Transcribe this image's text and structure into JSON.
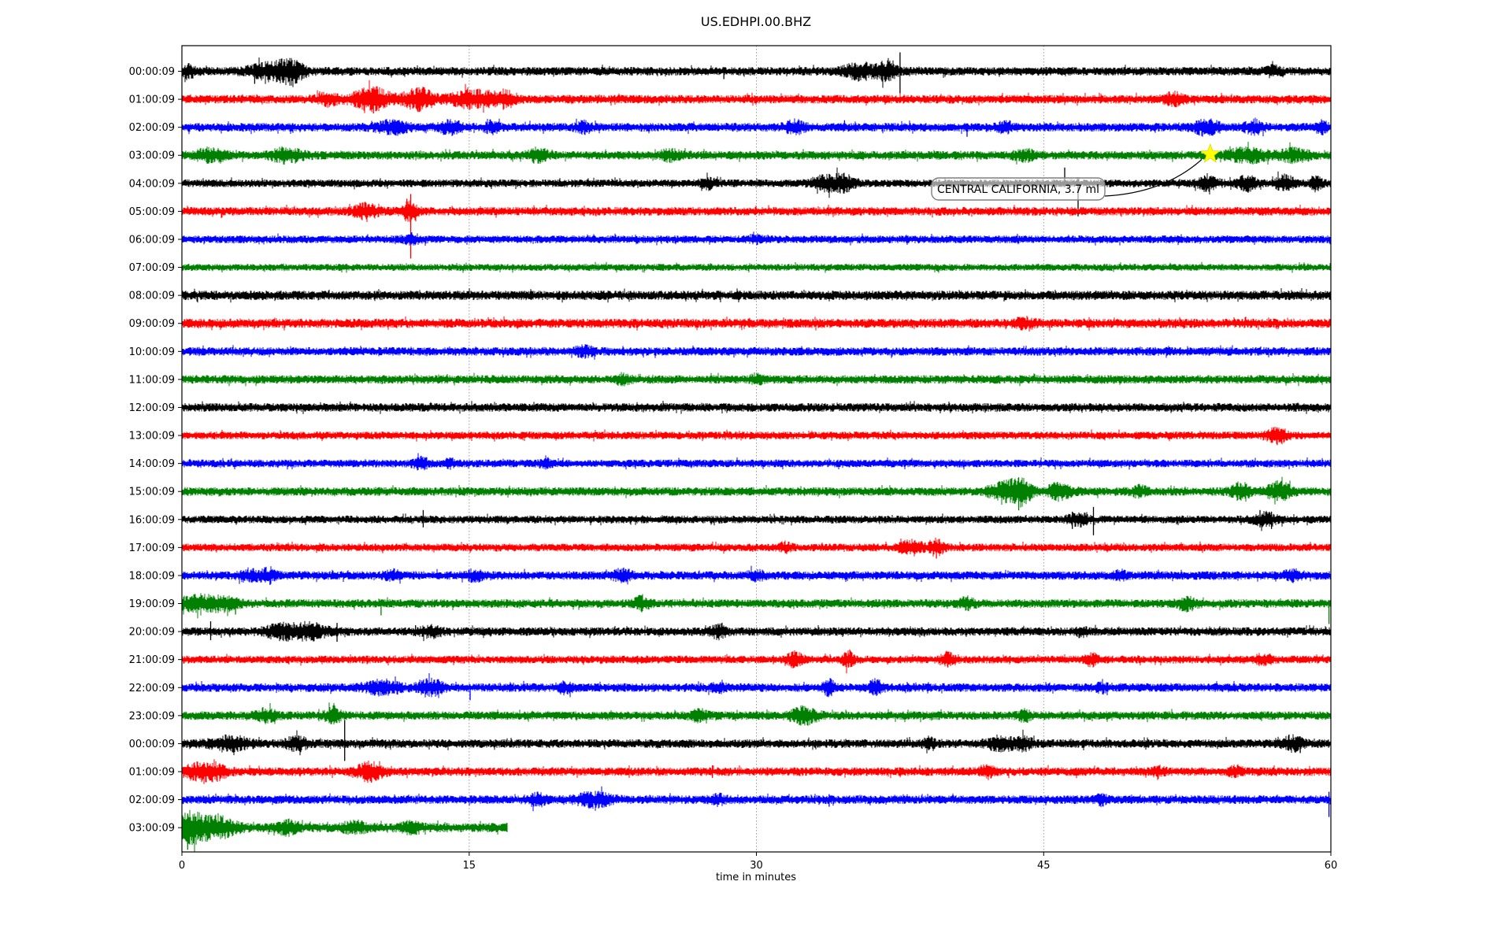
{
  "title": "US.EDHPI.00.BHZ",
  "xlabel": "time in minutes",
  "annotation": {
    "text": "CENTRAL CALIFORNIA, 3.7 ml",
    "row_index": 3,
    "row_label": "03:00:09",
    "minute": 53.7,
    "marker": "star",
    "marker_color": "#ffff00"
  },
  "chart_data": {
    "type": "line",
    "subtype": "seismogram-dayplot",
    "title": "US.EDHPI.00.BHZ",
    "xlabel": "time in minutes",
    "xlim": [
      0,
      60
    ],
    "x_ticks": [
      0,
      15,
      30,
      45,
      60
    ],
    "grid": "vertical-dotted-at-15-30-45",
    "trace_colors_cycle": [
      "#000000",
      "#ff0000",
      "#0000ff",
      "#008000"
    ],
    "events_format": "[minute, extra_amplitude_px, width_min]",
    "spikes_format": "[minute, up_px, down_px]",
    "annotation": {
      "text": "CENTRAL CALIFORNIA, 3.7 ml",
      "row_index": 3,
      "minute": 53.7,
      "marker": "star",
      "marker_color": "#ffff00"
    },
    "rows": [
      {
        "label": "00:00:09",
        "color": "#000000",
        "base": 5.5,
        "end": 60,
        "events": [
          [
            0.3,
            6,
            0.4
          ],
          [
            4.8,
            9,
            1.2
          ],
          [
            5.8,
            8,
            0.6
          ],
          [
            35.4,
            8,
            0.8
          ],
          [
            36.8,
            9,
            0.5
          ],
          [
            57,
            4,
            0.4
          ]
        ],
        "spikes": [
          [
            3.8,
            6,
            16
          ],
          [
            28.3,
            5,
            10
          ],
          [
            37.5,
            24,
            28
          ]
        ]
      },
      {
        "label": "01:00:09",
        "color": "#ff0000",
        "base": 5.5,
        "end": 60,
        "events": [
          [
            7.6,
            6,
            0.5
          ],
          [
            9.9,
            12,
            1.0
          ],
          [
            12.4,
            11,
            0.8
          ],
          [
            15.3,
            9,
            1.2
          ],
          [
            16.9,
            7,
            0.5
          ],
          [
            51.8,
            6,
            0.5
          ]
        ],
        "spikes": [
          [
            10.0,
            14,
            18
          ],
          [
            12.4,
            12,
            16
          ]
        ]
      },
      {
        "label": "02:00:09",
        "color": "#0000ff",
        "base": 5.5,
        "end": 60,
        "events": [
          [
            11,
            6,
            0.8
          ],
          [
            14,
            6,
            0.6
          ],
          [
            16.2,
            5,
            0.4
          ],
          [
            21,
            5,
            0.4
          ],
          [
            32,
            6,
            0.5
          ],
          [
            43,
            5,
            0.4
          ],
          [
            53.5,
            7,
            0.7
          ],
          [
            56,
            6,
            0.5
          ],
          [
            59.5,
            6,
            0.3
          ]
        ],
        "spikes": [
          [
            34.6,
            9,
            4
          ],
          [
            41,
            4,
            12
          ]
        ]
      },
      {
        "label": "03:00:09",
        "color": "#008000",
        "base": 5.5,
        "end": 60,
        "events": [
          [
            1.5,
            6,
            0.8
          ],
          [
            5.5,
            7,
            0.8
          ],
          [
            18.6,
            6,
            0.5
          ],
          [
            25.5,
            5,
            0.5
          ],
          [
            44,
            5,
            0.5
          ],
          [
            55.6,
            7,
            1.0
          ],
          [
            58.1,
            6,
            0.8
          ]
        ],
        "spikes": []
      },
      {
        "label": "04:00:09",
        "color": "#000000",
        "base": 5,
        "end": 60,
        "events": [
          [
            27.5,
            5,
            0.4
          ],
          [
            33.6,
            8,
            0.7
          ],
          [
            34.6,
            8,
            0.5
          ],
          [
            53.6,
            8,
            0.5
          ],
          [
            55.6,
            7,
            0.5
          ],
          [
            57.6,
            8,
            0.5
          ],
          [
            59.2,
            7,
            0.3
          ]
        ],
        "spikes": [
          [
            33.8,
            12,
            8
          ],
          [
            46.1,
            20,
            5
          ],
          [
            46.8,
            5,
            42
          ],
          [
            53.4,
            10,
            8
          ],
          [
            57.5,
            10,
            8
          ]
        ]
      },
      {
        "label": "05:00:09",
        "color": "#ff0000",
        "base": 5.5,
        "end": 60,
        "events": [
          [
            9.6,
            7,
            0.6
          ],
          [
            11.9,
            10,
            0.4
          ]
        ],
        "spikes": [
          [
            11.75,
            16,
            8
          ],
          [
            11.95,
            22,
            60
          ],
          [
            12.1,
            10,
            6
          ]
        ]
      },
      {
        "label": "06:00:09",
        "color": "#0000ff",
        "base": 5,
        "end": 60,
        "events": [
          [
            12,
            4,
            0.5
          ],
          [
            30,
            3,
            0.5
          ]
        ],
        "spikes": []
      },
      {
        "label": "07:00:09",
        "color": "#008000",
        "base": 4.5,
        "end": 60,
        "events": [],
        "spikes": []
      },
      {
        "label": "08:00:09",
        "color": "#000000",
        "base": 6,
        "end": 60,
        "events": [],
        "spikes": []
      },
      {
        "label": "09:00:09",
        "color": "#ff0000",
        "base": 6,
        "end": 60,
        "events": [
          [
            44,
            4,
            0.5
          ]
        ],
        "spikes": []
      },
      {
        "label": "10:00:09",
        "color": "#0000ff",
        "base": 5.5,
        "end": 60,
        "events": [
          [
            21,
            4,
            0.5
          ]
        ],
        "spikes": []
      },
      {
        "label": "11:00:09",
        "color": "#008000",
        "base": 5.5,
        "end": 60,
        "events": [
          [
            23,
            4,
            0.4
          ],
          [
            30,
            4,
            0.3
          ]
        ],
        "spikes": []
      },
      {
        "label": "12:00:09",
        "color": "#000000",
        "base": 5.5,
        "end": 60,
        "events": [],
        "spikes": []
      },
      {
        "label": "13:00:09",
        "color": "#ff0000",
        "base": 5,
        "end": 60,
        "events": [
          [
            57.2,
            8,
            0.5
          ]
        ],
        "spikes": [
          [
            57.2,
            10,
            12
          ]
        ]
      },
      {
        "label": "14:00:09",
        "color": "#0000ff",
        "base": 5,
        "end": 60,
        "events": [
          [
            12.5,
            5,
            0.4
          ],
          [
            14,
            4,
            0.3
          ],
          [
            19,
            4,
            0.3
          ]
        ],
        "spikes": []
      },
      {
        "label": "15:00:09",
        "color": "#008000",
        "base": 5.5,
        "end": 60,
        "events": [
          [
            43.0,
            10,
            0.8
          ],
          [
            43.9,
            12,
            0.5
          ],
          [
            45.8,
            8,
            0.6
          ],
          [
            50,
            5,
            0.4
          ],
          [
            55.3,
            8,
            0.5
          ],
          [
            57.3,
            9,
            0.6
          ]
        ],
        "spikes": [
          [
            43.7,
            18,
            24
          ],
          [
            57.2,
            14,
            12
          ]
        ]
      },
      {
        "label": "16:00:09",
        "color": "#000000",
        "base": 5,
        "end": 60,
        "events": [
          [
            46.8,
            6,
            0.5
          ],
          [
            56.6,
            6,
            0.6
          ]
        ],
        "spikes": [
          [
            12.6,
            12,
            10
          ],
          [
            46.5,
            10,
            12
          ],
          [
            47.6,
            16,
            20
          ],
          [
            56.3,
            12,
            10
          ],
          [
            56.9,
            10,
            12
          ]
        ]
      },
      {
        "label": "17:00:09",
        "color": "#ff0000",
        "base": 5,
        "end": 60,
        "events": [
          [
            31.5,
            4,
            0.3
          ],
          [
            38.1,
            7,
            0.6
          ],
          [
            39.4,
            8,
            0.4
          ]
        ],
        "spikes": [
          [
            39.4,
            6,
            14
          ]
        ]
      },
      {
        "label": "18:00:09",
        "color": "#0000ff",
        "base": 5.5,
        "end": 60,
        "events": [
          [
            3.5,
            5,
            0.5
          ],
          [
            4.5,
            6,
            0.4
          ],
          [
            11,
            4,
            0.4
          ],
          [
            15.3,
            5,
            0.4
          ],
          [
            23,
            5,
            0.5
          ],
          [
            30,
            4,
            0.4
          ],
          [
            49,
            4,
            0.3
          ],
          [
            58,
            5,
            0.4
          ]
        ],
        "spikes": [
          [
            4.6,
            6,
            12
          ]
        ]
      },
      {
        "label": "19:00:09",
        "color": "#008000",
        "base": 5.5,
        "end": 60,
        "events": [
          [
            0.8,
            8,
            0.9
          ],
          [
            2.2,
            7,
            0.7
          ],
          [
            24,
            6,
            0.4
          ],
          [
            41,
            5,
            0.4
          ],
          [
            52.5,
            6,
            0.5
          ]
        ],
        "spikes": [
          [
            2.8,
            6,
            14
          ],
          [
            10.4,
            5,
            15
          ],
          [
            59.9,
            4,
            26
          ]
        ]
      },
      {
        "label": "20:00:09",
        "color": "#000000",
        "base": 5.5,
        "end": 60,
        "events": [
          [
            5.3,
            7,
            1.0
          ],
          [
            6.8,
            7,
            0.8
          ],
          [
            13,
            5,
            0.5
          ],
          [
            28,
            6,
            0.4
          ],
          [
            47,
            4,
            0.3
          ]
        ],
        "spikes": [
          [
            1.5,
            13,
            11
          ],
          [
            8.1,
            11,
            13
          ],
          [
            12.2,
            8,
            6
          ],
          [
            28,
            10,
            5
          ]
        ]
      },
      {
        "label": "21:00:09",
        "color": "#ff0000",
        "base": 5,
        "end": 60,
        "events": [
          [
            32,
            7,
            0.4
          ],
          [
            34.8,
            8,
            0.3
          ],
          [
            40,
            6,
            0.4
          ],
          [
            47.5,
            6,
            0.3
          ],
          [
            56.5,
            5,
            0.4
          ]
        ],
        "spikes": [
          [
            34.8,
            8,
            10
          ],
          [
            40,
            6,
            10
          ]
        ]
      },
      {
        "label": "22:00:09",
        "color": "#0000ff",
        "base": 5.5,
        "end": 60,
        "events": [
          [
            10.5,
            7,
            0.8
          ],
          [
            13,
            7,
            0.7
          ],
          [
            20,
            5,
            0.4
          ],
          [
            28,
            4,
            0.4
          ],
          [
            33.8,
            7,
            0.3
          ],
          [
            36.2,
            7,
            0.3
          ],
          [
            48,
            4,
            0.3
          ]
        ],
        "spikes": [
          [
            15.05,
            4,
            16
          ],
          [
            33.8,
            8,
            10
          ],
          [
            36.3,
            10,
            8
          ]
        ]
      },
      {
        "label": "23:00:09",
        "color": "#008000",
        "base": 5.5,
        "end": 60,
        "events": [
          [
            4.4,
            6,
            0.5
          ],
          [
            7.9,
            8,
            0.4
          ],
          [
            27,
            5,
            0.4
          ],
          [
            32.5,
            8,
            0.7
          ],
          [
            44,
            5,
            0.3
          ]
        ],
        "spikes": [
          [
            7.9,
            13,
            6
          ],
          [
            32.6,
            10,
            8
          ]
        ]
      },
      {
        "label": "00:00:09",
        "color": "#000000",
        "base": 5.5,
        "end": 60,
        "events": [
          [
            2.5,
            7,
            1.0
          ],
          [
            6,
            6,
            0.6
          ],
          [
            39,
            5,
            0.3
          ],
          [
            42.8,
            7,
            0.7
          ],
          [
            44,
            6,
            0.4
          ],
          [
            58,
            7,
            0.5
          ]
        ],
        "spikes": [
          [
            8.5,
            30,
            22
          ],
          [
            39,
            8,
            8
          ],
          [
            57.8,
            11,
            9
          ],
          [
            58.4,
            9,
            12
          ]
        ]
      },
      {
        "label": "01:00:09",
        "color": "#ff0000",
        "base": 5.5,
        "end": 60,
        "events": [
          [
            0.8,
            8,
            0.7
          ],
          [
            1.8,
            7,
            0.6
          ],
          [
            9.8,
            9,
            0.7
          ],
          [
            42,
            5,
            0.4
          ],
          [
            51,
            4,
            0.3
          ],
          [
            55,
            5,
            0.3
          ]
        ],
        "spikes": [
          [
            9.9,
            10,
            14
          ],
          [
            27.7,
            8,
            8
          ],
          [
            55,
            6,
            8
          ]
        ]
      },
      {
        "label": "02:00:09",
        "color": "#0000ff",
        "base": 5.5,
        "end": 60,
        "events": [
          [
            18.5,
            5,
            0.5
          ],
          [
            21.5,
            7,
            0.9
          ],
          [
            28,
            4,
            0.4
          ],
          [
            48,
            4,
            0.3
          ]
        ],
        "spikes": [
          [
            21.3,
            8,
            10
          ],
          [
            33.8,
            7,
            9
          ],
          [
            59.9,
            10,
            22
          ]
        ]
      },
      {
        "label": "03:00:09",
        "color": "#008000",
        "base": 6,
        "end": 17.0,
        "events": [
          [
            0.4,
            14,
            0.5
          ],
          [
            1.2,
            10,
            0.8
          ],
          [
            2.2,
            7,
            0.8
          ],
          [
            5.5,
            6,
            0.5
          ],
          [
            9,
            5,
            0.6
          ],
          [
            12,
            5,
            0.5
          ]
        ],
        "spikes": [
          [
            0.3,
            18,
            28
          ],
          [
            0.6,
            14,
            20
          ]
        ]
      }
    ]
  }
}
